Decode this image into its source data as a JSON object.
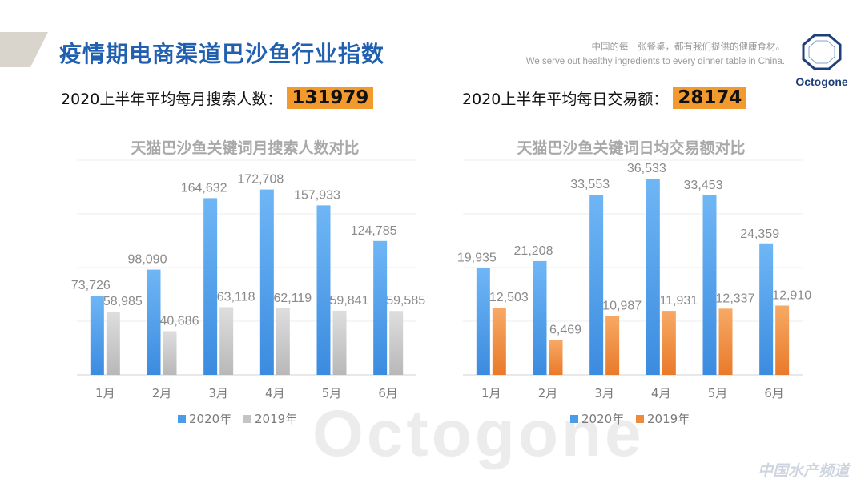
{
  "header": {
    "title": "疫情期电商渠道巴沙鱼行业指数",
    "slogan_cn": "中国的每一张餐桌，都有我们提供的健康食材。",
    "slogan_en": "We serve out healthy ingredients to every dinner table in China.",
    "brand": "Octogone"
  },
  "stats": {
    "left_label": "2020上半年平均每月搜索人数：",
    "left_value": "131979",
    "right_label": "2020上半年平均每日交易额：",
    "right_value": "28174"
  },
  "watermark": {
    "bg_logo": "Octogone",
    "site": "中国水产频道"
  },
  "colors": {
    "title_blue": "#2160b0",
    "bar_2020": "#4a9be8",
    "bar_2019_left": "#c4c4c4",
    "bar_2019_right": "#ee8a3c",
    "highlight": "#f39a2e"
  },
  "chart_data": [
    {
      "type": "bar",
      "title": "天猫巴沙鱼关键词月搜索人数对比",
      "categories": [
        "1月",
        "2月",
        "3月",
        "4月",
        "5月",
        "6月"
      ],
      "series": [
        {
          "name": "2020年",
          "values": [
            73726,
            98090,
            164632,
            172708,
            157933,
            124785
          ],
          "labels": [
            "73,726",
            "98,090",
            "164,632",
            "172,708",
            "157,933",
            "124,785"
          ]
        },
        {
          "name": "2019年",
          "values": [
            58985,
            40686,
            63118,
            62119,
            59841,
            59585
          ],
          "labels": [
            "58,985",
            "40,686",
            "63,118",
            "62,119",
            "59,841",
            "59,585"
          ]
        }
      ],
      "ylim": [
        0,
        200000
      ],
      "grid": true,
      "legend": "bottom"
    },
    {
      "type": "bar",
      "title": "天猫巴沙鱼关键词日均交易额对比",
      "categories": [
        "1月",
        "2月",
        "3月",
        "4月",
        "5月",
        "6月"
      ],
      "series": [
        {
          "name": "2020年",
          "values": [
            19935,
            21208,
            33553,
            36533,
            33453,
            24359
          ],
          "labels": [
            "19,935",
            "21,208",
            "33,553",
            "36,533",
            "33,453",
            "24,359"
          ]
        },
        {
          "name": "2019年",
          "values": [
            12503,
            6469,
            10987,
            11931,
            12337,
            12910
          ],
          "labels": [
            "12,503",
            "6,469",
            "10,987",
            "11,931",
            "12,337",
            "12,910"
          ]
        }
      ],
      "ylim": [
        0,
        40000
      ],
      "grid": true,
      "legend": "bottom"
    }
  ]
}
